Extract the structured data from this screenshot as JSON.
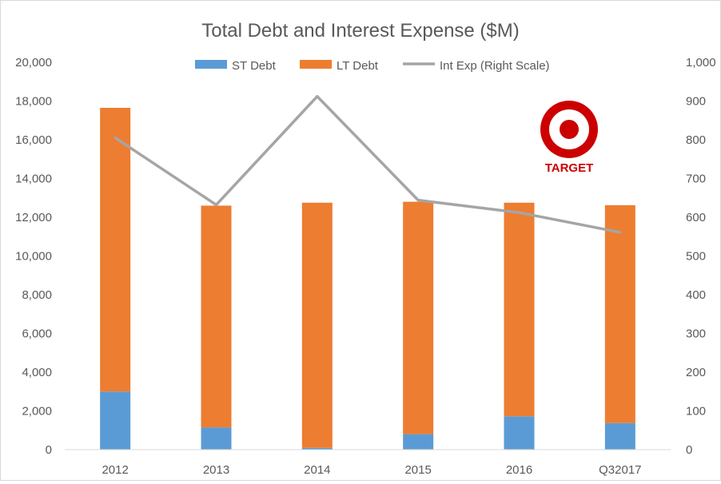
{
  "chart_data": {
    "type": "bar",
    "stacked": true,
    "title": "Total Debt and Interest Expense ($M)",
    "categories": [
      "2012",
      "2013",
      "2014",
      "2015",
      "2016",
      "Q32017"
    ],
    "series": [
      {
        "name": "ST Debt",
        "type": "bar",
        "axis": "left",
        "color": "#5b9bd5",
        "values": [
          3000,
          1150,
          90,
          800,
          1720,
          1370
        ]
      },
      {
        "name": "LT Debt",
        "type": "bar",
        "axis": "left",
        "color": "#ed7d31",
        "values": [
          14650,
          11450,
          12660,
          12000,
          11030,
          11250
        ]
      },
      {
        "name": "Int Exp (Right Scale)",
        "type": "line",
        "axis": "right",
        "color": "#a5a5a5",
        "values": [
          805,
          632,
          912,
          644,
          612,
          561
        ]
      }
    ],
    "y_left": {
      "min": 0,
      "max": 20000,
      "ticks": [
        "0",
        "2,000",
        "4,000",
        "6,000",
        "8,000",
        "10,000",
        "12,000",
        "14,000",
        "16,000",
        "18,000",
        "20,000"
      ]
    },
    "y_right": {
      "min": 0,
      "max": 1000,
      "ticks": [
        "0",
        "100",
        "200",
        "300",
        "400",
        "500",
        "600",
        "700",
        "800",
        "900",
        "1,000"
      ]
    },
    "grid": false,
    "legend": "top-center",
    "logo": {
      "text": "TARGET",
      "color": "#cc0000",
      "icon": "target-logo-icon"
    }
  }
}
